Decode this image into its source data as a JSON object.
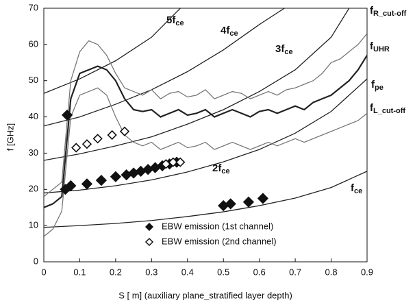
{
  "chart_data": {
    "type": "line",
    "xlabel": "S [ m] (auxiliary plane_stratified layer depth)",
    "ylabel": "f [GHz]",
    "xlim": [
      0,
      0.9
    ],
    "ylim": [
      0,
      70
    ],
    "xticks": [
      0,
      0.1,
      0.2,
      0.3,
      0.4,
      0.5,
      0.6,
      0.7,
      0.8,
      0.9
    ],
    "yticks": [
      0,
      10,
      20,
      30,
      40,
      50,
      60,
      70
    ],
    "series": [
      {
        "label": "f",
        "sub": "ce",
        "color": "#222222",
        "x": [
          0,
          0.1,
          0.2,
          0.3,
          0.4,
          0.5,
          0.6,
          0.7,
          0.8,
          0.9
        ],
        "values": [
          9.5,
          10,
          10.6,
          11.4,
          12.5,
          13.8,
          15.5,
          17.6,
          20.5,
          25
        ]
      },
      {
        "label": "2f",
        "sub": "ce",
        "color": "#222222",
        "x": [
          0,
          0.1,
          0.2,
          0.3,
          0.4,
          0.5,
          0.6,
          0.7,
          0.8,
          0.9
        ],
        "values": [
          19,
          19.8,
          21,
          22.6,
          24.8,
          27.6,
          31,
          35.5,
          41.5,
          50.5
        ]
      },
      {
        "label": "3f",
        "sub": "ce",
        "color": "#222222",
        "x": [
          0,
          0.1,
          0.2,
          0.3,
          0.4,
          0.5,
          0.6,
          0.7,
          0.8,
          0.85
        ],
        "values": [
          28,
          29.8,
          32,
          34.5,
          38,
          42,
          47,
          53,
          62,
          70
        ]
      },
      {
        "label": "4f",
        "sub": "ce",
        "color": "#222222",
        "x": [
          0,
          0.1,
          0.2,
          0.3,
          0.4,
          0.5,
          0.6,
          0.67
        ],
        "values": [
          37.5,
          40,
          43.5,
          47.5,
          52.5,
          58.5,
          65.5,
          70
        ]
      },
      {
        "label": "5f",
        "sub": "ce",
        "color": "#222222",
        "x": [
          0,
          0.1,
          0.2,
          0.3,
          0.38
        ],
        "values": [
          46.5,
          50.5,
          55.5,
          62,
          70
        ]
      },
      {
        "label": "f",
        "sub": "R_cut-off",
        "color": "#777777",
        "x": [
          0,
          0.025,
          0.05,
          0.075,
          0.1,
          0.125,
          0.15,
          0.175,
          0.2,
          0.225,
          0.25,
          0.275,
          0.3,
          0.325,
          0.35,
          0.375,
          0.4,
          0.425,
          0.45,
          0.475,
          0.5,
          0.525,
          0.55,
          0.575,
          0.6,
          0.625,
          0.65,
          0.675,
          0.7,
          0.725,
          0.75,
          0.775,
          0.8,
          0.825,
          0.85,
          0.875,
          0.9
        ],
        "values": [
          18,
          20,
          22,
          50,
          58,
          61,
          60,
          57,
          52,
          48,
          47,
          46,
          47.5,
          45,
          46.5,
          47,
          45.5,
          46,
          47.5,
          45,
          46,
          47,
          46.5,
          45,
          46,
          47,
          46,
          47.5,
          48,
          49,
          50,
          52,
          55,
          56,
          58,
          60,
          63
        ]
      },
      {
        "label": "f",
        "sub": "UHR",
        "color": "#222222",
        "thick": true,
        "x": [
          0,
          0.025,
          0.05,
          0.075,
          0.1,
          0.125,
          0.15,
          0.175,
          0.2,
          0.225,
          0.25,
          0.275,
          0.3,
          0.325,
          0.35,
          0.375,
          0.4,
          0.425,
          0.45,
          0.475,
          0.5,
          0.525,
          0.55,
          0.575,
          0.6,
          0.625,
          0.65,
          0.675,
          0.7,
          0.725,
          0.75,
          0.775,
          0.8,
          0.825,
          0.85,
          0.875,
          0.9
        ],
        "values": [
          15,
          16,
          18,
          45,
          52,
          53,
          54,
          53,
          50,
          45,
          42,
          41.5,
          42,
          40,
          41,
          42,
          40.5,
          41,
          42,
          40,
          41,
          42,
          41,
          40,
          41.5,
          42,
          41,
          42,
          43,
          42,
          44,
          45,
          46,
          48,
          50,
          53,
          57
        ]
      },
      {
        "label": "f",
        "sub": "L_cut-off",
        "color": "#777777",
        "x": [
          0,
          0.025,
          0.05,
          0.075,
          0.1,
          0.125,
          0.15,
          0.175,
          0.2,
          0.225,
          0.25,
          0.275,
          0.3,
          0.325,
          0.35,
          0.375,
          0.4,
          0.425,
          0.45,
          0.475,
          0.5,
          0.525,
          0.55,
          0.575,
          0.6,
          0.625,
          0.65,
          0.675,
          0.7,
          0.725,
          0.75,
          0.775,
          0.8,
          0.825,
          0.85,
          0.875,
          0.9
        ],
        "values": [
          7,
          9,
          14,
          40,
          46,
          47,
          48,
          46,
          40,
          35,
          33,
          32,
          33,
          31,
          32,
          33,
          31.5,
          32,
          33,
          31,
          32,
          33,
          32,
          31,
          32,
          33,
          32,
          33,
          34,
          33,
          34,
          35,
          36,
          37,
          38,
          39,
          41
        ]
      }
    ],
    "annotations": [
      {
        "label": "f",
        "sub": "pe"
      }
    ],
    "points": [
      {
        "name": "EBW emission (1st channel)",
        "filled": true,
        "x": [
          0.06,
          0.075,
          0.12,
          0.16,
          0.2,
          0.23,
          0.25,
          0.27,
          0.29,
          0.31,
          0.33,
          0.35,
          0.37,
          0.5,
          0.52,
          0.57,
          0.61,
          0.065
        ],
        "values": [
          20,
          21,
          21.5,
          22.5,
          23.5,
          24,
          24.5,
          25,
          25.5,
          26,
          26.5,
          27,
          27.5,
          15.5,
          16,
          16.5,
          17.5,
          40.5
        ]
      },
      {
        "name": "EBW emission (2nd channel)",
        "filled": false,
        "x": [
          0.09,
          0.12,
          0.15,
          0.19,
          0.225,
          0.34,
          0.36,
          0.38
        ],
        "values": [
          31.5,
          32.5,
          34,
          35,
          36,
          27,
          27.5,
          27.5
        ]
      }
    ]
  }
}
